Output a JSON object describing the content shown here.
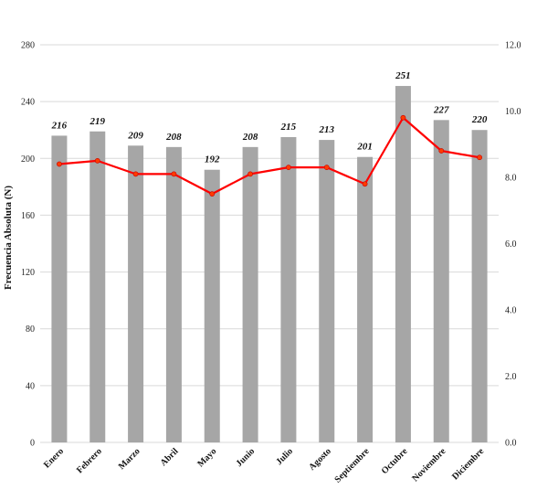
{
  "chart_data": {
    "type": "bar",
    "title": "",
    "xlabel": "",
    "ylabel": "Frecuencia Absoluta (N)",
    "categories": [
      "Enero",
      "Febrero",
      "Marzo",
      "Abril",
      "Mayo",
      "Junio",
      "Julio",
      "Agosto",
      "Septiembre",
      "Octubre",
      "Noviembre",
      "Diciembre"
    ],
    "ylim": [
      0,
      280
    ],
    "yticks": [
      0,
      40,
      80,
      120,
      160,
      200,
      240,
      280
    ],
    "y2lim": [
      0,
      12
    ],
    "y2ticks": [
      "0.0",
      "2.0",
      "4.0",
      "6.0",
      "8.0",
      "10.0",
      "12.0"
    ],
    "grid": true,
    "series": [
      {
        "type": "bar",
        "axis": "left",
        "color": "#a6a6a6",
        "values": [
          216,
          219,
          209,
          208,
          192,
          208,
          215,
          213,
          201,
          251,
          227,
          220
        ]
      },
      {
        "type": "line",
        "axis": "right",
        "color": "#ff0000",
        "values": [
          8.4,
          8.5,
          8.1,
          8.1,
          7.5,
          8.1,
          8.3,
          8.3,
          7.8,
          9.8,
          8.8,
          8.6
        ]
      }
    ]
  }
}
